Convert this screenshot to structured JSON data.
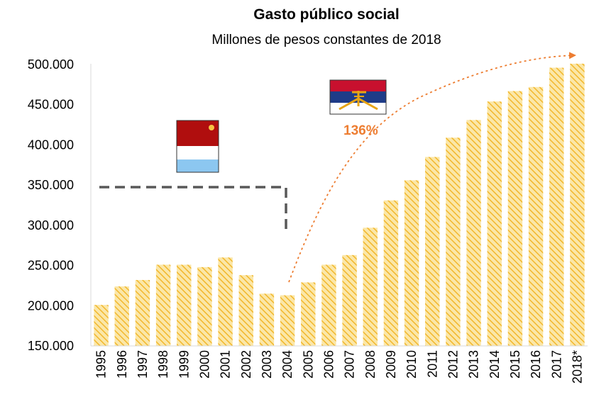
{
  "chart_data": {
    "type": "bar",
    "title": "Gasto público social",
    "subtitle": "Millones de pesos constantes de 2018",
    "xlabel": "",
    "ylabel": "",
    "ylim": [
      150000,
      500000
    ],
    "yticks": [
      {
        "value": 150000,
        "label": "150.000"
      },
      {
        "value": 200000,
        "label": "200.000"
      },
      {
        "value": 250000,
        "label": "250.000"
      },
      {
        "value": 300000,
        "label": "300.000"
      },
      {
        "value": 350000,
        "label": "350.000"
      },
      {
        "value": 400000,
        "label": "400.000"
      },
      {
        "value": 450000,
        "label": "450.000"
      },
      {
        "value": 500000,
        "label": "500.000"
      }
    ],
    "categories": [
      "1995",
      "1996",
      "1997",
      "1998",
      "1999",
      "2000",
      "2001",
      "2002",
      "2003",
      "2004",
      "2005",
      "2006",
      "2007",
      "2008",
      "2009",
      "2010",
      "2011",
      "2012",
      "2013",
      "2014",
      "2015",
      "2016",
      "2017",
      "2018*"
    ],
    "values": [
      201000,
      224000,
      232000,
      251000,
      251000,
      248000,
      260000,
      238000,
      215000,
      213000,
      229000,
      251000,
      263000,
      297000,
      331000,
      356000,
      385000,
      409000,
      431000,
      454000,
      467000,
      472000,
      496000,
      501000
    ],
    "annotation": {
      "label": "136%",
      "color": "#ED7D31"
    },
    "grid": false,
    "legend": "none",
    "bar_color": "#F6C343"
  }
}
